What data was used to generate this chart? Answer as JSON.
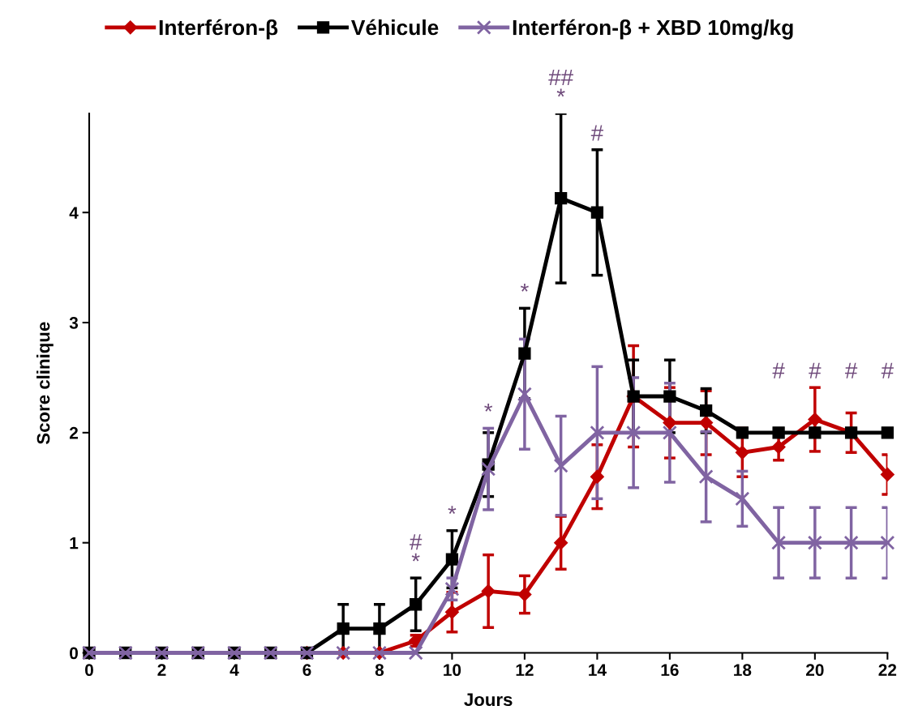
{
  "chart_data": {
    "type": "line",
    "xlabel": "Jours",
    "ylabel": "Score clinique",
    "x": [
      0,
      1,
      2,
      3,
      4,
      5,
      6,
      7,
      8,
      9,
      10,
      11,
      12,
      13,
      14,
      15,
      16,
      17,
      18,
      19,
      20,
      21,
      22
    ],
    "xlim": [
      0,
      22
    ],
    "xticks": [
      0,
      2,
      4,
      6,
      8,
      10,
      12,
      14,
      16,
      18,
      20,
      22
    ],
    "ylim": [
      0,
      4.9
    ],
    "yticks": [
      0,
      1,
      2,
      3,
      4
    ],
    "grid": false,
    "legend": "top",
    "series": [
      {
        "name": "Interféron-β",
        "color": "#c00000",
        "marker": "diamond",
        "values": [
          null,
          null,
          null,
          null,
          null,
          null,
          0,
          0,
          0,
          0.11,
          0.37,
          0.56,
          0.53,
          1.0,
          1.6,
          2.33,
          2.09,
          2.09,
          1.82,
          1.87,
          2.12,
          2.0,
          1.62
        ],
        "errors": [
          null,
          null,
          null,
          null,
          null,
          null,
          null,
          null,
          null,
          0.05,
          0.18,
          0.33,
          0.17,
          0.24,
          0.29,
          0.46,
          0.32,
          0.29,
          0.22,
          0.12,
          0.29,
          0.18,
          0.18
        ]
      },
      {
        "name": "Véhicule",
        "color": "#000000",
        "marker": "square",
        "values": [
          0,
          0,
          0,
          0,
          0,
          0,
          0,
          0.22,
          0.22,
          0.44,
          0.85,
          1.71,
          2.72,
          4.13,
          4.0,
          2.33,
          2.33,
          2.2,
          2.0,
          2.0,
          2.0,
          2.0,
          2.0
        ],
        "errors": [
          null,
          null,
          null,
          null,
          null,
          null,
          null,
          0.22,
          0.22,
          0.24,
          0.26,
          0.29,
          0.41,
          0.77,
          0.57,
          0.33,
          0.33,
          0.2,
          null,
          null,
          null,
          null,
          null
        ]
      },
      {
        "name": "Interféron-β + XBD 10mg/kg",
        "color": "#8064a2",
        "marker": "cross",
        "values": [
          0,
          0,
          0,
          0,
          0,
          0,
          0,
          0,
          0,
          0,
          0.58,
          1.67,
          2.35,
          1.7,
          2.0,
          2.0,
          2.0,
          1.6,
          1.4,
          1.0,
          1.0,
          1.0,
          1.0
        ],
        "errors": [
          null,
          null,
          null,
          null,
          null,
          null,
          null,
          null,
          null,
          null,
          0.1,
          0.37,
          0.5,
          0.45,
          0.6,
          0.5,
          0.45,
          0.41,
          0.25,
          0.32,
          0.32,
          0.32,
          0.32
        ]
      }
    ],
    "annotations": [
      {
        "text": "*",
        "x": 9,
        "y": 0.68
      },
      {
        "text": "#",
        "x": 9,
        "y": 0.68
      },
      {
        "text": "*",
        "x": 10,
        "y": 1.11
      },
      {
        "text": "*",
        "x": 11,
        "y": 2.04
      },
      {
        "text": "*",
        "x": 12,
        "y": 3.13
      },
      {
        "text": "*",
        "x": 13,
        "y": 4.9
      },
      {
        "text": "##",
        "x": 13,
        "y": 4.9
      },
      {
        "text": "#",
        "x": 14,
        "y": 4.57
      },
      {
        "text": "#",
        "x": 19,
        "y": 2.0
      },
      {
        "text": "#",
        "x": 20,
        "y": 2.0
      },
      {
        "text": "#",
        "x": 21,
        "y": 2.0
      },
      {
        "text": "#",
        "x": 22,
        "y": 2.0
      }
    ]
  }
}
